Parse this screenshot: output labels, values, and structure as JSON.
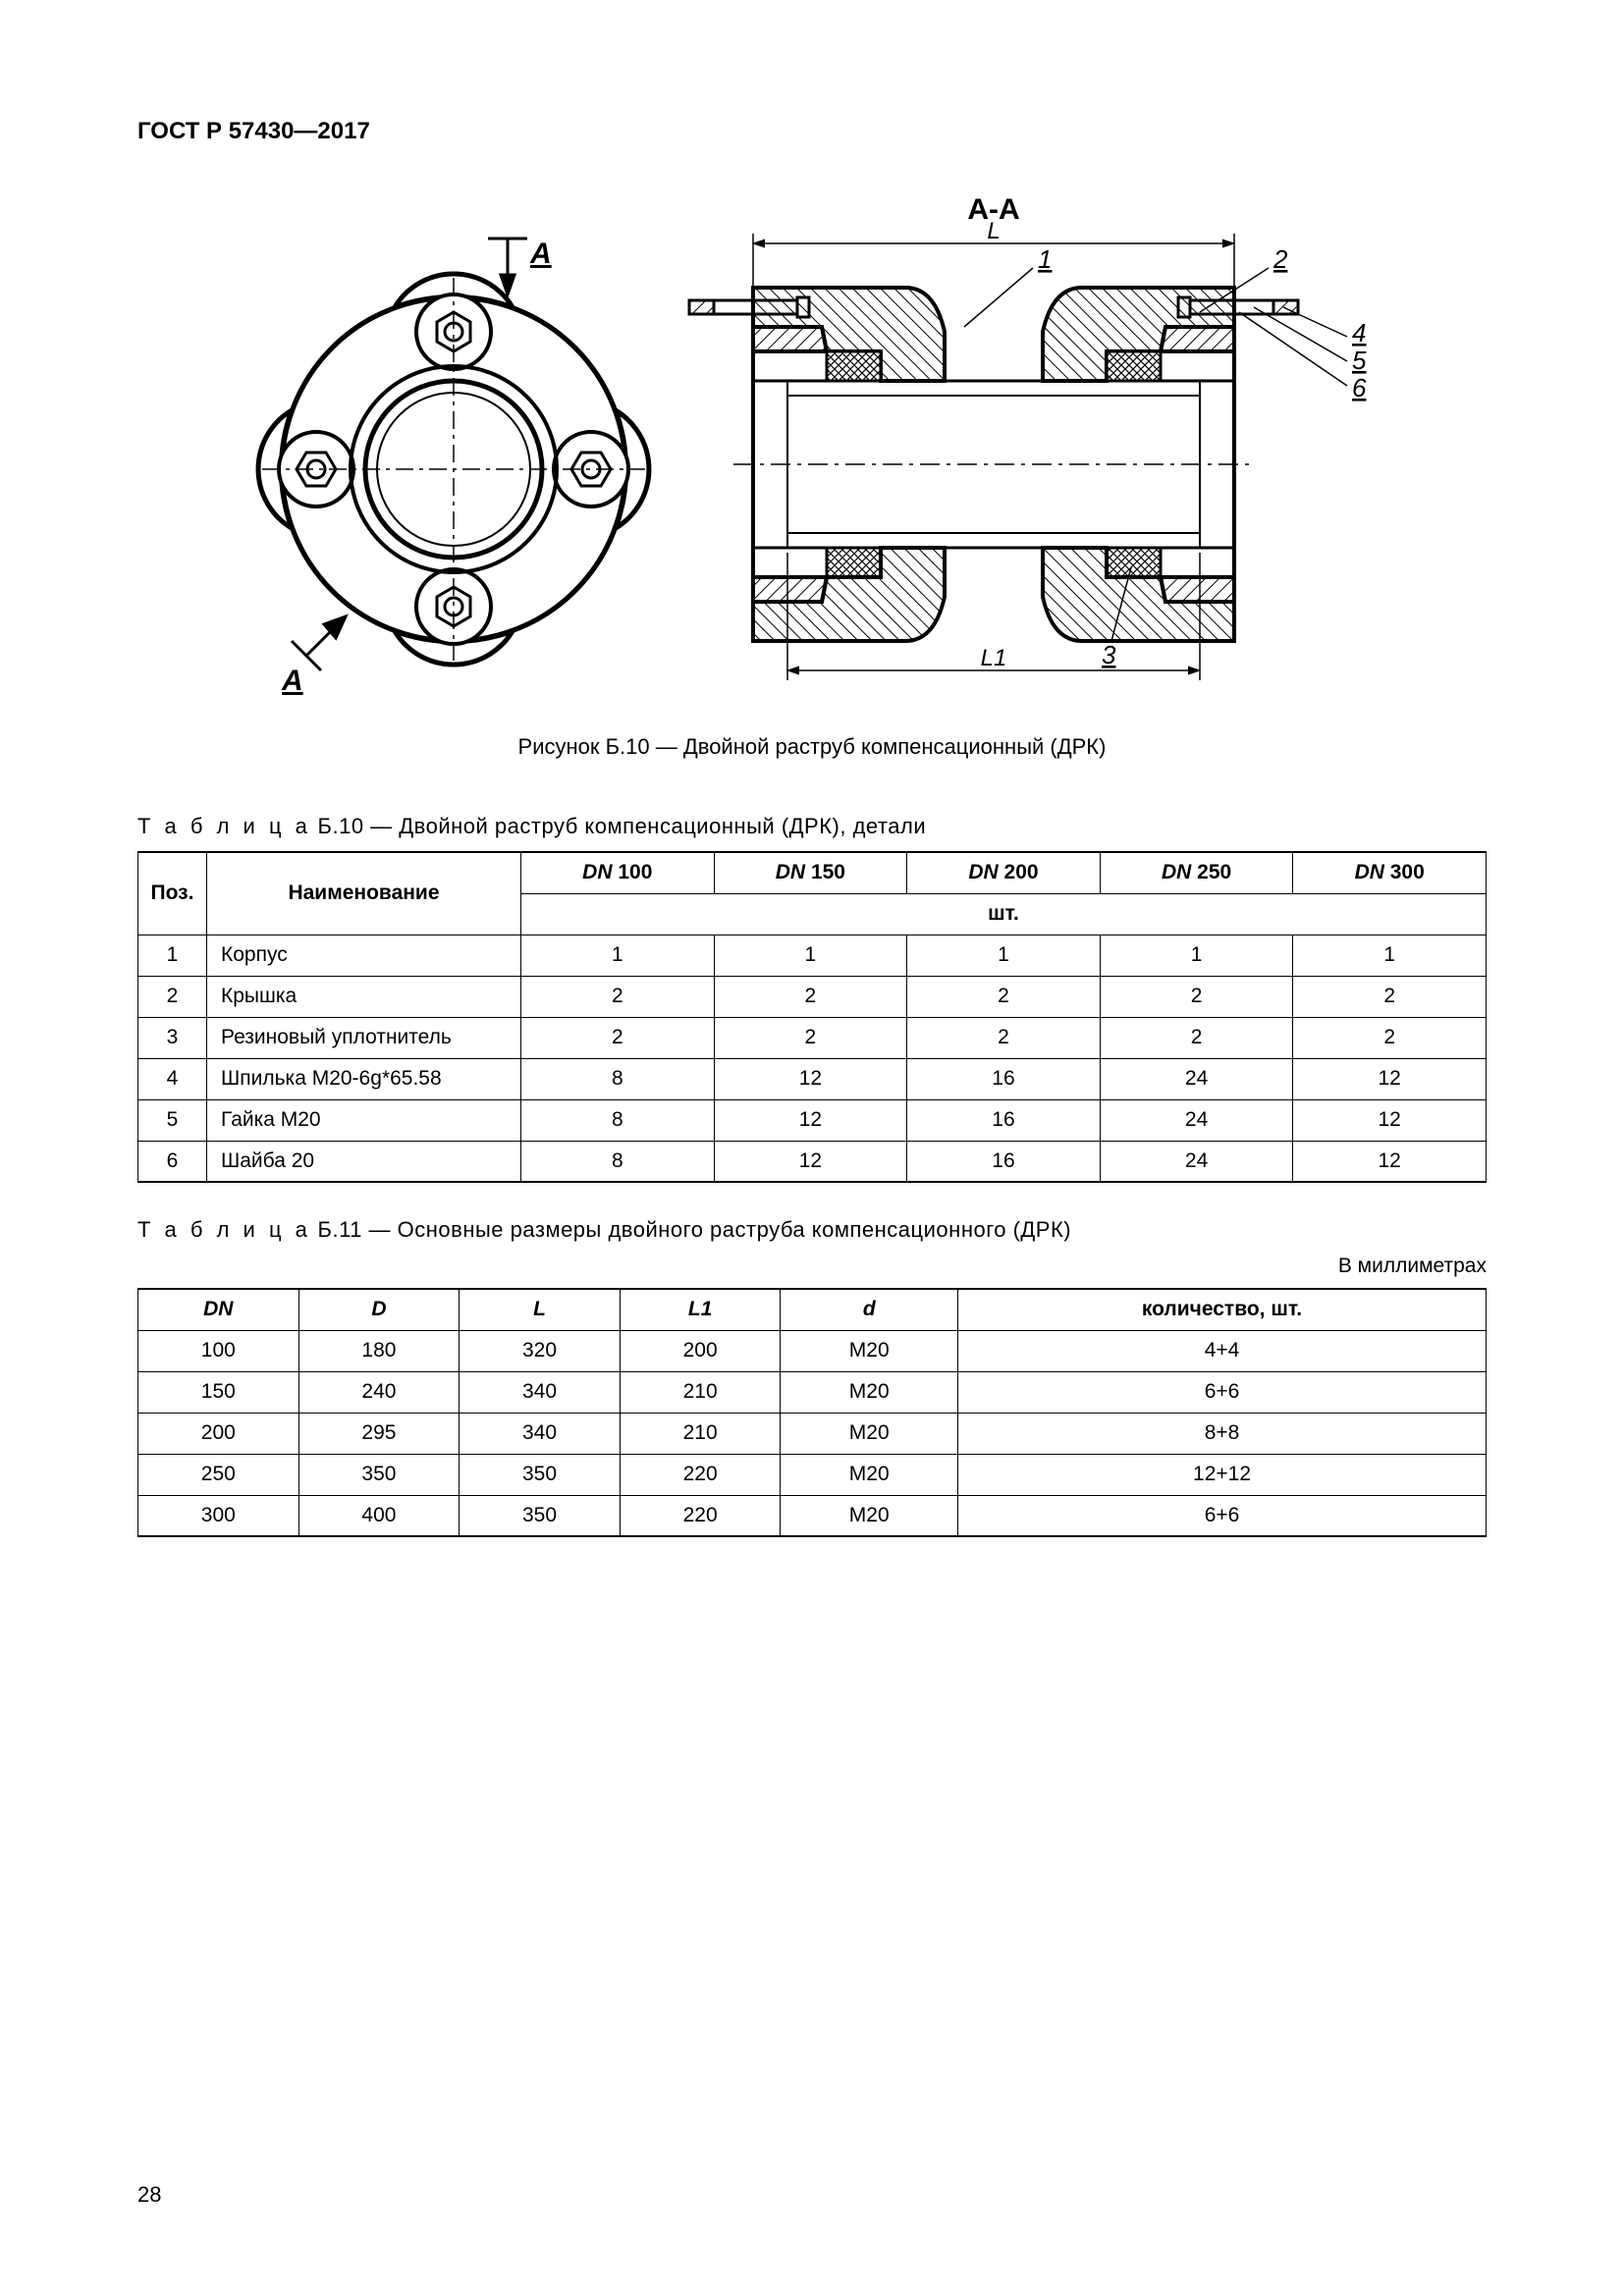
{
  "header": "ГОСТ Р 57430—2017",
  "pageNumber": "28",
  "figure": {
    "caption": "Рисунок Б.10 — Двойной раструб компенсационный (ДРК)",
    "sectionLabel": "А-А",
    "sectionMarkA1": "А",
    "sectionMarkA2": "А",
    "dimL": "L",
    "dimL1": "L1",
    "callout1": "1",
    "callout2": "2",
    "callout3": "3",
    "callout4": "4",
    "callout5": "5",
    "callout6": "6"
  },
  "table1": {
    "caption_prefix": "Т а б л и ц а",
    "caption": "  Б.10 — Двойной раструб компенсационный (ДРК), детали",
    "head_pos": "Поз.",
    "head_name": "Наименование",
    "head_unit": "шт.",
    "dn_prefix": "DN",
    "dn": [
      "100",
      "150",
      "200",
      "250",
      "300"
    ],
    "rows": [
      {
        "pos": "1",
        "name": "Корпус",
        "vals": [
          "1",
          "1",
          "1",
          "1",
          "1"
        ]
      },
      {
        "pos": "2",
        "name": "Крышка",
        "vals": [
          "2",
          "2",
          "2",
          "2",
          "2"
        ]
      },
      {
        "pos": "3",
        "name": "Резиновый уплотнитель",
        "vals": [
          "2",
          "2",
          "2",
          "2",
          "2"
        ]
      },
      {
        "pos": "4",
        "name": "Шпилька М20-6g*65.58",
        "vals": [
          "8",
          "12",
          "16",
          "24",
          "12"
        ]
      },
      {
        "pos": "5",
        "name": "Гайка М20",
        "vals": [
          "8",
          "12",
          "16",
          "24",
          "12"
        ]
      },
      {
        "pos": "6",
        "name": "Шайба 20",
        "vals": [
          "8",
          "12",
          "16",
          "24",
          "12"
        ]
      }
    ]
  },
  "table2": {
    "caption_prefix": "Т а б л и ц а",
    "caption": "  Б.11 — Основные размеры двойного раструба компенсационного (ДРК)",
    "unit_note": "В миллиметрах",
    "columns": [
      "DN",
      "D",
      "L",
      "L1",
      "d",
      "количество, шт."
    ],
    "italic_cols": [
      true,
      true,
      true,
      true,
      true,
      false
    ],
    "rows": [
      [
        "100",
        "180",
        "320",
        "200",
        "М20",
        "4+4"
      ],
      [
        "150",
        "240",
        "340",
        "210",
        "М20",
        "6+6"
      ],
      [
        "200",
        "295",
        "340",
        "210",
        "М20",
        "8+8"
      ],
      [
        "250",
        "350",
        "350",
        "220",
        "М20",
        "12+12"
      ],
      [
        "300",
        "400",
        "350",
        "220",
        "М20",
        "6+6"
      ]
    ]
  },
  "colors": {
    "stroke": "#000000",
    "hatchDark": "#555555",
    "bg": "#ffffff"
  }
}
